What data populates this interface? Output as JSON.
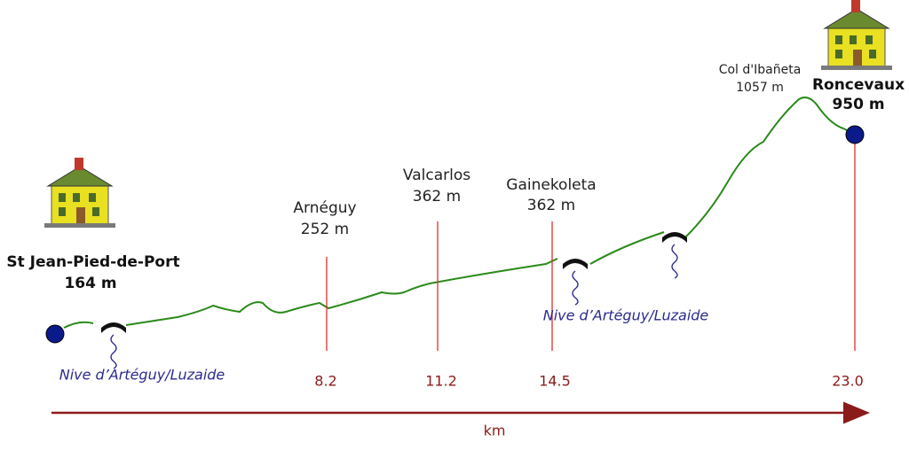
{
  "places": [
    {
      "name": "St Jean-Pied-de-Port",
      "elevation": "164 m"
    },
    {
      "name": "Arnéguy",
      "elevation": "252 m",
      "km": "8.2"
    },
    {
      "name": "Valcarlos",
      "elevation": "362 m",
      "km": "11.2"
    },
    {
      "name": "Gainekoleta",
      "elevation": "362 m",
      "km": "14.5"
    },
    {
      "name": "Col d'Ibañeta",
      "elevation": "1057 m"
    },
    {
      "name": "Roncevaux",
      "elevation": "950 m",
      "km": "23.0"
    }
  ],
  "rivers": [
    "Nive d’Artéguy/Luzaide",
    "Nive d’Artéguy/Luzaide"
  ],
  "axis_label": "km"
}
